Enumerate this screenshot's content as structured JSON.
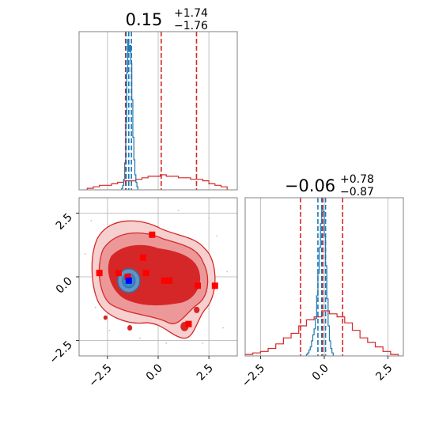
{
  "chart_data": {
    "type": "corner",
    "panels": [
      {
        "id": "hist-x",
        "type": "histogram",
        "title": {
          "value": "0.15",
          "plus": "+1.74",
          "minus": "−1.76"
        },
        "xlim": [
          -3.9,
          3.9
        ],
        "x_ticks": [
          -2.5,
          0.0,
          2.5
        ],
        "red_quantiles": [
          -1.61,
          0.15,
          1.89
        ],
        "blue_quantiles": [
          -1.58,
          -1.45,
          -1.32
        ],
        "red_hist": {
          "edges": [
            -3.5,
            -3.2,
            -2.9,
            -2.6,
            -2.3,
            -2.0,
            -1.7,
            -1.4,
            -1.1,
            -0.8,
            -0.5,
            -0.2,
            0.1,
            0.4,
            0.7,
            1.0,
            1.3,
            1.6,
            1.9,
            2.2,
            2.5,
            2.8,
            3.1,
            3.4
          ],
          "heights": [
            1,
            2,
            3,
            3,
            4,
            5,
            6,
            6,
            7,
            8,
            9,
            9,
            10,
            9,
            9,
            8,
            8,
            7,
            7,
            6,
            4,
            3,
            2
          ]
        },
        "blue_hist": {
          "edges": [
            -1.8,
            -1.75,
            -1.7,
            -1.65,
            -1.6,
            -1.55,
            -1.5,
            -1.45,
            -1.4,
            -1.35,
            -1.3,
            -1.25,
            -1.2,
            -1.15,
            -1.1,
            -1.05,
            -1.0
          ],
          "heights": [
            1,
            3,
            7,
            18,
            45,
            78,
            100,
            92,
            96,
            84,
            60,
            35,
            20,
            10,
            5,
            2
          ]
        }
      },
      {
        "id": "hist-y",
        "type": "histogram",
        "title": {
          "value": "−0.06",
          "plus": "+0.78",
          "minus": "−0.87"
        },
        "xlim": [
          -3.1,
          3.1
        ],
        "x_ticks": [
          -2.5,
          0.0,
          2.5
        ],
        "red_quantiles": [
          -0.93,
          -0.06,
          0.72
        ],
        "blue_quantiles": [
          -0.25,
          -0.1,
          0.05
        ],
        "red_hist": {
          "edges": [
            -3.1,
            -2.8,
            -2.5,
            -2.2,
            -1.9,
            -1.6,
            -1.3,
            -1.0,
            -0.7,
            -0.4,
            -0.1,
            0.2,
            0.5,
            0.8,
            1.1,
            1.4,
            1.7,
            2.0,
            2.3,
            2.6,
            2.9
          ],
          "heights": [
            1,
            2,
            3,
            5,
            8,
            12,
            15,
            20,
            24,
            26,
            30,
            28,
            26,
            22,
            17,
            12,
            9,
            6,
            3,
            1
          ]
        },
        "blue_hist": {
          "edges": [
            -0.7,
            -0.65,
            -0.6,
            -0.55,
            -0.5,
            -0.45,
            -0.4,
            -0.35,
            -0.3,
            -0.25,
            -0.2,
            -0.15,
            -0.1,
            -0.05,
            0.0,
            0.05,
            0.1,
            0.15,
            0.2,
            0.25,
            0.3,
            0.35
          ],
          "heights": [
            1,
            2,
            4,
            6,
            10,
            14,
            18,
            25,
            40,
            55,
            72,
            88,
            100,
            96,
            80,
            60,
            38,
            20,
            10,
            5,
            2
          ]
        }
      },
      {
        "id": "joint",
        "type": "scatter-contour",
        "xlim": [
          -3.9,
          3.9
        ],
        "ylim": [
          -3.1,
          3.1
        ],
        "x_ticks": [
          -2.5,
          0.0,
          2.5
        ],
        "y_ticks": [
          -2.5,
          0.0,
          2.5
        ],
        "red_points": [
          {
            "x": -2.9,
            "y": 0.15
          },
          {
            "x": -1.95,
            "y": 0.15
          },
          {
            "x": -1.5,
            "y": 0.0
          },
          {
            "x": -0.75,
            "y": 0.75
          },
          {
            "x": -0.6,
            "y": 0.15
          },
          {
            "x": 0.3,
            "y": -0.15
          },
          {
            "x": 0.55,
            "y": -0.15
          },
          {
            "x": 1.95,
            "y": -0.35
          },
          {
            "x": 2.8,
            "y": -0.35
          },
          {
            "x": -0.3,
            "y": 1.65
          },
          {
            "x": 1.5,
            "y": -1.85
          }
        ],
        "blue_point": {
          "x": -1.45,
          "y": -0.15
        }
      }
    ]
  }
}
